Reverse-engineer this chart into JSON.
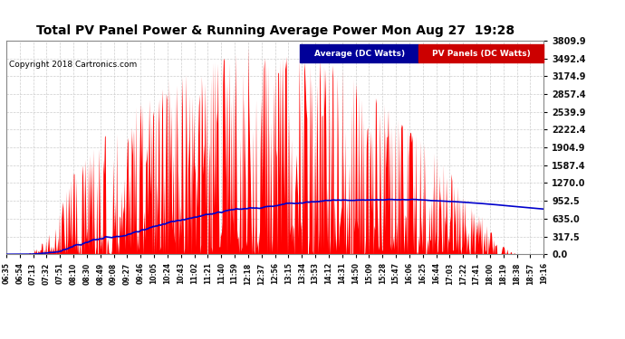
{
  "title": "Total PV Panel Power & Running Average Power Mon Aug 27  19:28",
  "copyright": "Copyright 2018 Cartronics.com",
  "legend_avg": "Average (DC Watts)",
  "legend_pv": "PV Panels (DC Watts)",
  "ymax": 3809.9,
  "ymin": 0.0,
  "yticks": [
    0.0,
    317.5,
    635.0,
    952.5,
    1270.0,
    1587.4,
    1904.9,
    2222.4,
    2539.9,
    2857.4,
    3174.9,
    3492.4,
    3809.9
  ],
  "ytick_labels": [
    "0.0",
    "317.5",
    "635.0",
    "952.5",
    "1270.0",
    "1587.4",
    "1904.9",
    "2222.4",
    "2539.9",
    "2857.4",
    "3174.9",
    "3492.4",
    "3809.9"
  ],
  "xtick_labels": [
    "06:35",
    "06:54",
    "07:13",
    "07:32",
    "07:51",
    "08:10",
    "08:30",
    "08:49",
    "09:08",
    "09:27",
    "09:46",
    "10:05",
    "10:24",
    "10:43",
    "11:02",
    "11:21",
    "11:40",
    "11:59",
    "12:18",
    "12:37",
    "12:56",
    "13:15",
    "13:34",
    "13:53",
    "14:12",
    "14:31",
    "14:50",
    "15:09",
    "15:28",
    "15:47",
    "16:06",
    "16:25",
    "16:44",
    "17:03",
    "17:22",
    "17:41",
    "18:00",
    "18:19",
    "18:38",
    "18:57",
    "19:16"
  ],
  "bg_color": "#ffffff",
  "plot_bg_color": "#ffffff",
  "grid_color": "#c8c8c8",
  "pv_color": "#ff0000",
  "avg_color": "#0000cc",
  "title_color": "#000000",
  "copyright_color": "#000000",
  "legend_avg_bg": "#000099",
  "legend_pv_bg": "#cc0000",
  "figsize": [
    6.9,
    3.75
  ],
  "dpi": 100
}
